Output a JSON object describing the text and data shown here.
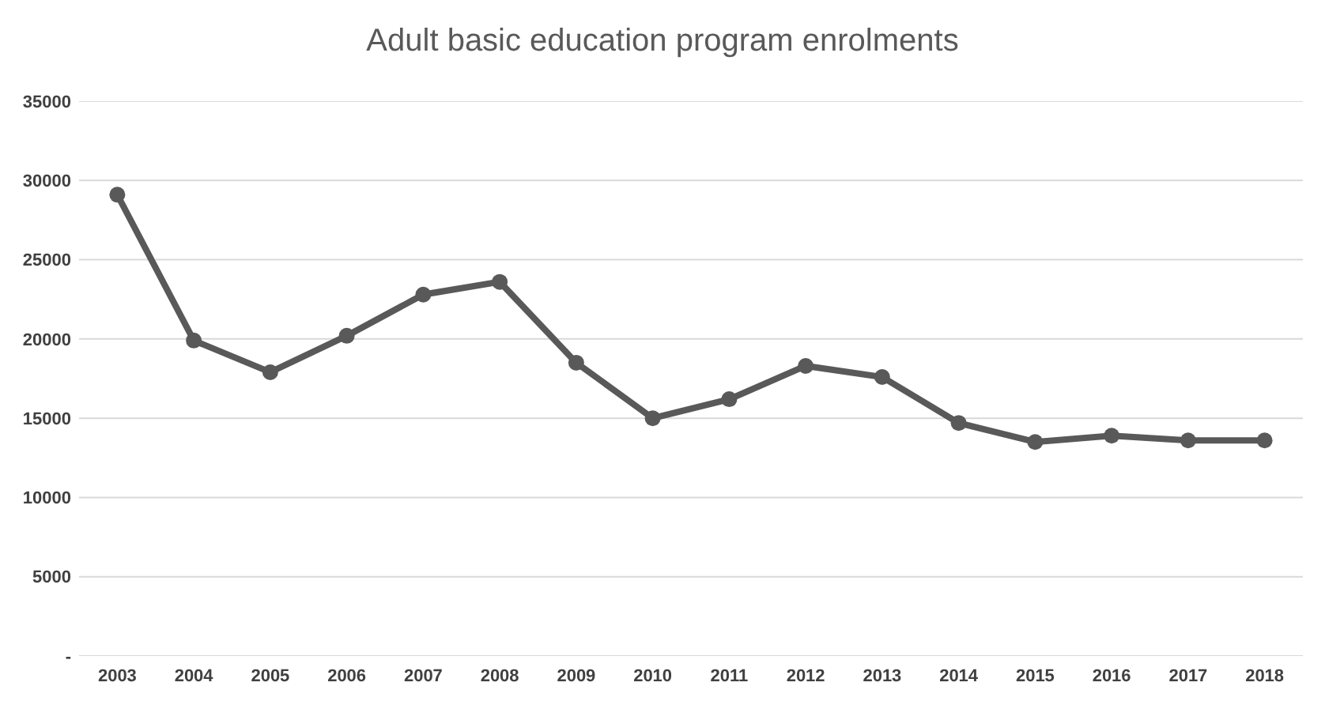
{
  "chart_data": {
    "type": "line",
    "title": "Adult basic education program enrolments",
    "categories": [
      "2003",
      "2004",
      "2005",
      "2006",
      "2007",
      "2008",
      "2009",
      "2010",
      "2011",
      "2012",
      "2013",
      "2014",
      "2015",
      "2016",
      "2017",
      "2018"
    ],
    "series": [
      {
        "color": "#595959",
        "values": [
          29100,
          19900,
          17900,
          20200,
          22800,
          23600,
          18500,
          15000,
          16200,
          18300,
          17600,
          14700,
          13500,
          13900,
          13600,
          13600
        ]
      }
    ],
    "ylim": [
      0,
      35000
    ],
    "yticks": [
      {
        "value": 0,
        "label": "-"
      },
      5000,
      10000,
      15000,
      20000,
      25000,
      30000,
      35000
    ],
    "grid": "y",
    "marker": "circle",
    "line_style": "solid"
  }
}
